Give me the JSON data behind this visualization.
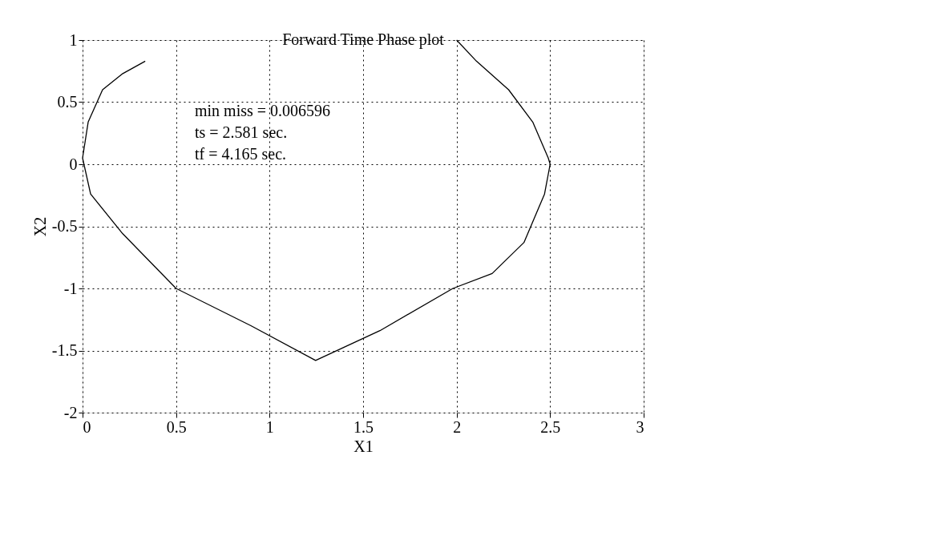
{
  "chart_data": {
    "type": "line",
    "title": "Forward Time Phase plot",
    "xlabel": "X1",
    "ylabel": "X2",
    "series": [
      {
        "color": "#000000",
        "x": [
          2.0,
          2.106,
          2.278,
          2.407,
          2.49,
          2.5,
          2.47,
          2.36,
          2.19,
          1.98,
          1.59,
          1.246,
          0.9,
          0.5,
          0.215,
          0.043,
          0.0,
          0.03,
          0.107,
          0.215,
          0.335
        ],
        "values": [
          1.0,
          0.83,
          0.6,
          0.34,
          0.05,
          0.0,
          -0.24,
          -0.63,
          -0.88,
          -1.0,
          -1.34,
          -1.58,
          -1.3,
          -1.0,
          -0.56,
          -0.24,
          0.05,
          0.34,
          0.6,
          0.73,
          0.83
        ]
      }
    ],
    "xlim": [
      0,
      3
    ],
    "ylim": [
      -2,
      1
    ],
    "xticks": [
      0,
      0.5,
      1,
      1.5,
      2,
      2.5,
      3
    ],
    "yticks": [
      -2,
      -1.5,
      -1,
      -0.5,
      0,
      0.5,
      1
    ],
    "grid": true,
    "line_style": "solid",
    "marker": "none",
    "legend": false,
    "annotations": [
      "min miss = 0.006596",
      "ts = 2.581 sec.",
      "tf = 4.165 sec."
    ]
  }
}
